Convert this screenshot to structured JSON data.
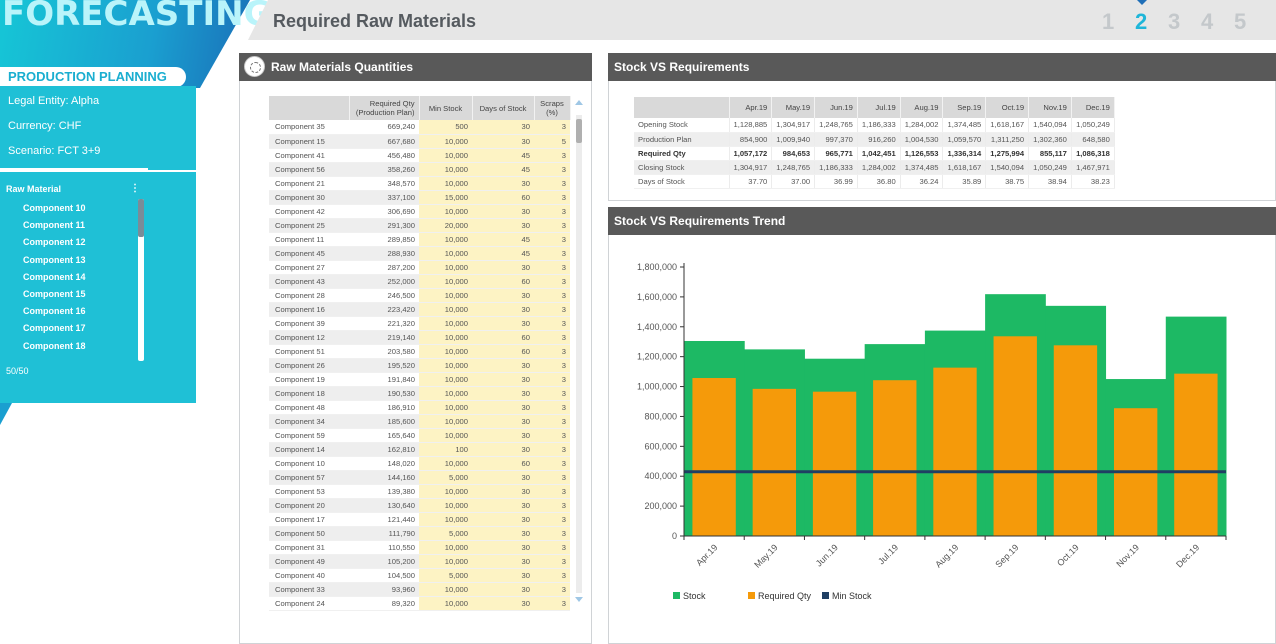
{
  "app": {
    "brand": "FORECASTING",
    "module": "PRODUCTION PLANNING",
    "page_title": "Required Raw Materials"
  },
  "steps": [
    "1",
    "2",
    "3",
    "4",
    "5"
  ],
  "active_step": 1,
  "info": {
    "legal_entity": "Legal Entity: Alpha",
    "currency": "Currency:  CHF",
    "scenario": "Scenario: FCT 3+9"
  },
  "filter": {
    "title": "Raw Material",
    "more": "⋮",
    "items": [
      "Component 10",
      "Component 11",
      "Component 12",
      "Component 13",
      "Component 14",
      "Component 15",
      "Component 16",
      "Component 17",
      "Component 18"
    ],
    "count": "50/50"
  },
  "rm_panel": {
    "title": "Raw Materials Quantities",
    "headers": {
      "name": "",
      "req_line1": "Required Qty",
      "req_line2": "(Production Plan)",
      "min": "Min Stock",
      "days": "Days of Stock",
      "scrap_line1": "Scraps",
      "scrap_line2": "(%)"
    },
    "rows": [
      [
        "Component 35",
        "669,240",
        "500",
        "30",
        "3"
      ],
      [
        "Component 15",
        "667,680",
        "10,000",
        "30",
        "5"
      ],
      [
        "Component 41",
        "456,480",
        "10,000",
        "45",
        "3"
      ],
      [
        "Component 56",
        "358,260",
        "10,000",
        "45",
        "3"
      ],
      [
        "Component 21",
        "348,570",
        "10,000",
        "30",
        "3"
      ],
      [
        "Component 30",
        "337,100",
        "15,000",
        "60",
        "3"
      ],
      [
        "Component 42",
        "306,690",
        "10,000",
        "30",
        "3"
      ],
      [
        "Component 25",
        "291,300",
        "20,000",
        "30",
        "3"
      ],
      [
        "Component 11",
        "289,850",
        "10,000",
        "45",
        "3"
      ],
      [
        "Component 45",
        "288,930",
        "10,000",
        "45",
        "3"
      ],
      [
        "Component 27",
        "287,200",
        "10,000",
        "30",
        "3"
      ],
      [
        "Component 43",
        "252,000",
        "10,000",
        "60",
        "3"
      ],
      [
        "Component 28",
        "246,500",
        "10,000",
        "30",
        "3"
      ],
      [
        "Component 16",
        "223,420",
        "10,000",
        "30",
        "3"
      ],
      [
        "Component 39",
        "221,320",
        "10,000",
        "30",
        "3"
      ],
      [
        "Component 12",
        "219,140",
        "10,000",
        "60",
        "3"
      ],
      [
        "Component 51",
        "203,580",
        "10,000",
        "60",
        "3"
      ],
      [
        "Component 26",
        "195,520",
        "10,000",
        "30",
        "3"
      ],
      [
        "Component 19",
        "191,840",
        "10,000",
        "30",
        "3"
      ],
      [
        "Component 18",
        "190,530",
        "10,000",
        "30",
        "3"
      ],
      [
        "Component 48",
        "186,910",
        "10,000",
        "30",
        "3"
      ],
      [
        "Component 34",
        "185,600",
        "10,000",
        "30",
        "3"
      ],
      [
        "Component 59",
        "165,640",
        "10,000",
        "30",
        "3"
      ],
      [
        "Component 14",
        "162,810",
        "100",
        "30",
        "3"
      ],
      [
        "Component 10",
        "148,020",
        "10,000",
        "60",
        "3"
      ],
      [
        "Component 57",
        "144,160",
        "5,000",
        "30",
        "3"
      ],
      [
        "Component 53",
        "139,380",
        "10,000",
        "30",
        "3"
      ],
      [
        "Component 20",
        "130,640",
        "10,000",
        "30",
        "3"
      ],
      [
        "Component 17",
        "121,440",
        "10,000",
        "30",
        "3"
      ],
      [
        "Component 50",
        "111,790",
        "5,000",
        "30",
        "3"
      ],
      [
        "Component 31",
        "110,550",
        "10,000",
        "30",
        "3"
      ],
      [
        "Component 49",
        "105,200",
        "10,000",
        "30",
        "3"
      ],
      [
        "Component 40",
        "104,500",
        "5,000",
        "30",
        "3"
      ],
      [
        "Component 33",
        "93,960",
        "10,000",
        "30",
        "3"
      ],
      [
        "Component 24",
        "89,320",
        "10,000",
        "30",
        "3"
      ]
    ]
  },
  "svr_panel": {
    "title": "Stock VS Requirements",
    "months": [
      "Apr.19",
      "May.19",
      "Jun.19",
      "Jul.19",
      "Aug.19",
      "Sep.19",
      "Oct.19",
      "Nov.19",
      "Dec.19"
    ],
    "rows": [
      {
        "label": "Opening Stock",
        "values": [
          "1,128,885",
          "1,304,917",
          "1,248,765",
          "1,186,333",
          "1,284,002",
          "1,374,485",
          "1,618,167",
          "1,540,094",
          "1,050,249"
        ],
        "style": "normal"
      },
      {
        "label": "Production Plan",
        "values": [
          "854,900",
          "1,009,940",
          "997,370",
          "916,260",
          "1,004,530",
          "1,059,570",
          "1,311,250",
          "1,302,360",
          "648,580"
        ],
        "style": "alt"
      },
      {
        "label": "Required Qty",
        "values": [
          "1,057,172",
          "984,653",
          "965,771",
          "1,042,451",
          "1,126,553",
          "1,336,314",
          "1,275,994",
          "855,117",
          "1,086,318"
        ],
        "style": "bold"
      },
      {
        "label": "Closing Stock",
        "values": [
          "1,304,917",
          "1,248,765",
          "1,186,333",
          "1,284,002",
          "1,374,485",
          "1,618,167",
          "1,540,094",
          "1,050,249",
          "1,467,971"
        ],
        "style": "alt"
      },
      {
        "label": "Days of Stock",
        "values": [
          "37.70",
          "37.00",
          "36.99",
          "36.80",
          "36.24",
          "35.89",
          "38.75",
          "38.94",
          "38.23"
        ],
        "style": "normal"
      }
    ]
  },
  "trend_panel": {
    "title": "Stock VS Requirements Trend"
  },
  "chart_data": {
    "type": "bar",
    "categories": [
      "Apr.19",
      "May.19",
      "Jun.19",
      "Jul.19",
      "Aug.19",
      "Sep.19",
      "Oct.19",
      "Nov.19",
      "Dec.19"
    ],
    "series": [
      {
        "name": "Stock",
        "color": "#1db964",
        "values": [
          1304917,
          1248765,
          1186333,
          1284002,
          1374485,
          1618167,
          1540094,
          1050249,
          1467971
        ]
      },
      {
        "name": "Required Qty",
        "color": "#f59a0a",
        "values": [
          1057172,
          984653,
          965771,
          1042451,
          1126553,
          1336314,
          1275994,
          855117,
          1086318
        ]
      },
      {
        "name": "Min Stock",
        "color": "#1f3f63",
        "values": [
          430000,
          430000,
          430000,
          430000,
          430000,
          430000,
          430000,
          430000,
          430000
        ]
      }
    ],
    "yticks": [
      "0",
      "200,000",
      "400,000",
      "600,000",
      "800,000",
      "1,000,000",
      "1,200,000",
      "1,400,000",
      "1,600,000",
      "1,800,000"
    ],
    "ylim": [
      0,
      1800000
    ],
    "grid": false,
    "legend": "bottom-left"
  }
}
